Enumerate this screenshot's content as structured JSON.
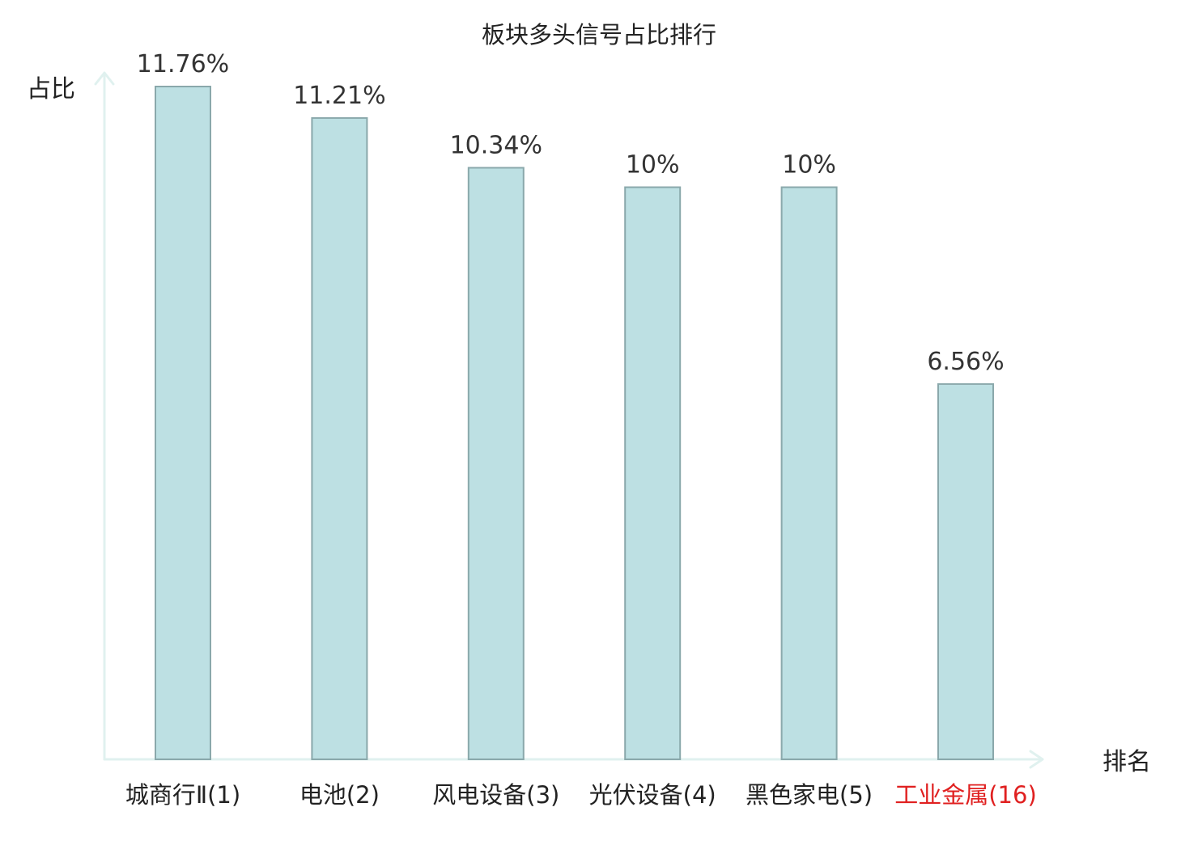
{
  "chart_data": {
    "type": "bar",
    "title": "板块多头信号占比排行",
    "ylabel": "占比",
    "xlabel": "排名",
    "categories": [
      "城商行Ⅱ(1)",
      "电池(2)",
      "风电设备(3)",
      "光伏设备(4)",
      "黑色家电(5)",
      "工业金属(16)"
    ],
    "values": [
      11.76,
      11.21,
      10.34,
      10,
      10,
      6.56
    ],
    "value_labels": [
      "11.76%",
      "11.21%",
      "10.34%",
      "10%",
      "10%",
      "6.56%"
    ],
    "highlight_index": 5,
    "ylim": [
      0,
      12
    ],
    "grid": false,
    "legend": "none"
  },
  "colors": {
    "bar_fill": "#bde0e3",
    "bar_stroke": "#8aa8ab",
    "axis": "#e0f1ef",
    "text": "#222222",
    "value_text": "#333333",
    "highlight": "#e02020"
  }
}
